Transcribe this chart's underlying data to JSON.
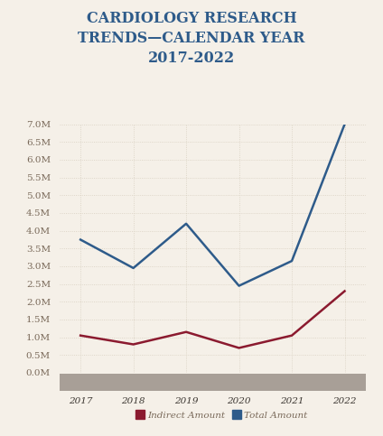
{
  "title_line1": "CARDIOLOGY RESEARCH",
  "title_line2": "TRENDS—CALENDAR YEAR",
  "title_line3": "2017-2022",
  "years": [
    2017,
    2018,
    2019,
    2020,
    2021,
    2022
  ],
  "indirect_amount": [
    1.05,
    0.8,
    1.15,
    0.7,
    1.05,
    2.3
  ],
  "total_amount": [
    3.75,
    2.95,
    4.2,
    2.45,
    3.15,
    7.0
  ],
  "indirect_color": "#8B1A2F",
  "total_color": "#2E5B8A",
  "background_color": "#F5F0E8",
  "xaxis_bg_color": "#A89F97",
  "tick_color": "#7A6A5A",
  "grid_color": "#D8CFC0",
  "title_color": "#2E5B8A",
  "ylim": [
    0,
    7.0
  ],
  "yticks": [
    0.0,
    0.5,
    1.0,
    1.5,
    2.0,
    2.5,
    3.0,
    3.5,
    4.0,
    4.5,
    5.0,
    5.5,
    6.0,
    6.5,
    7.0
  ],
  "legend_label_indirect": "Indirect Amount",
  "legend_label_total": "Total Amount"
}
